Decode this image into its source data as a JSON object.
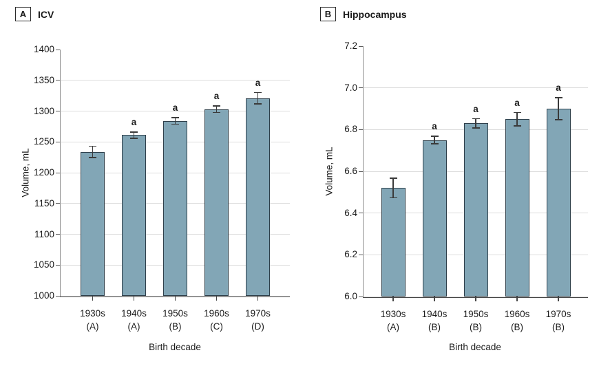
{
  "chart_data": [
    {
      "type": "bar",
      "panel_label": "A",
      "title": "ICV",
      "xlabel": "Birth decade",
      "ylabel": "Volume, mL",
      "categories": [
        "1930s",
        "1940s",
        "1950s",
        "1960s",
        "1970s"
      ],
      "category_sublabels": [
        "(A)",
        "(A)",
        "(B)",
        "(C)",
        "(D)"
      ],
      "values": [
        1234,
        1261,
        1284,
        1303,
        1321
      ],
      "error_bars": [
        10,
        6,
        6,
        6,
        10
      ],
      "sig_labels": [
        "",
        "a",
        "a",
        "a",
        "a"
      ],
      "ylim": [
        1000,
        1400
      ],
      "ytick_labels": [
        "1000",
        "1050",
        "1100",
        "1150",
        "1200",
        "1250",
        "1300",
        "1350",
        "1400"
      ],
      "grid": true,
      "legend": "none"
    },
    {
      "type": "bar",
      "panel_label": "B",
      "title": "Hippocampus",
      "xlabel": "Birth decade",
      "ylabel": "Volume, mL",
      "categories": [
        "1930s",
        "1940s",
        "1950s",
        "1960s",
        "1970s"
      ],
      "category_sublabels": [
        "(A)",
        "(B)",
        "(B)",
        "(B)",
        "(B)"
      ],
      "values": [
        6.52,
        6.75,
        6.83,
        6.85,
        6.9
      ],
      "error_bars": [
        0.05,
        0.02,
        0.025,
        0.035,
        0.055
      ],
      "sig_labels": [
        "",
        "a",
        "a",
        "a",
        "a"
      ],
      "ylim": [
        6.0,
        7.2
      ],
      "ytick_labels": [
        "6.0",
        "6.2",
        "6.4",
        "6.6",
        "6.8",
        "7.0",
        "7.2"
      ],
      "grid": true,
      "legend": "none"
    }
  ],
  "colors": {
    "bar_fill": "#82a6b6",
    "bar_border": "#2e3f4a",
    "error_bar": "#3a3a3a",
    "gridline": "#dcdcdc",
    "y_axis": "#8f8f8f",
    "x_axis": "#454545",
    "tick_mark": "#5a5a5a",
    "text": "#1a1a1a",
    "background": "#ffffff"
  }
}
